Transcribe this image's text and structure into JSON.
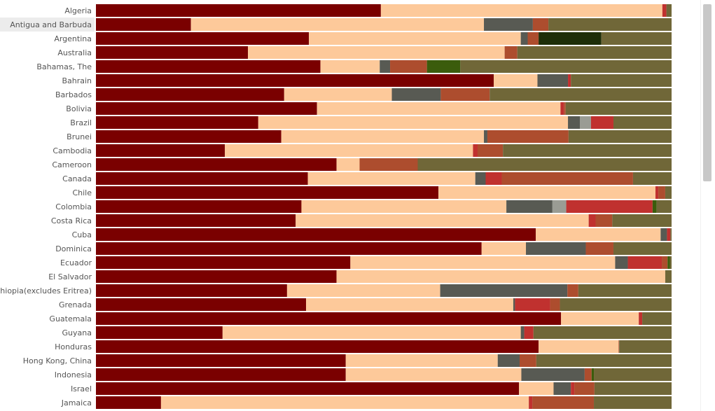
{
  "chart_data": {
    "type": "bar",
    "orientation": "horizontal",
    "stacked": "percent",
    "title": "",
    "xlabel": "",
    "ylabel": "",
    "xlim": [
      0,
      100
    ],
    "legend": "none",
    "grid": false,
    "highlighted_category": "Antigua and Barbuda",
    "categories": [
      "Algeria",
      "Antigua and Barbuda",
      "Argentina",
      "Australia",
      "Bahamas, The",
      "Bahrain",
      "Barbados",
      "Bolivia",
      "Brazil",
      "Brunei",
      "Cambodia",
      "Cameroon",
      "Canada",
      "Chile",
      "Colombia",
      "Costa Rica",
      "Cuba",
      "Dominica",
      "Ecuador",
      "El Salvador",
      "Ethiopia(excludes Eritrea)",
      "Grenada",
      "Guatemala",
      "Guyana",
      "Honduras",
      "Hong Kong, China",
      "Indonesia",
      "Israel",
      "Jamaica"
    ],
    "series": [
      {
        "color": "#7a0000",
        "values": [
          49.5,
          16.5,
          37.0,
          26.4,
          39.0,
          69.1,
          32.7,
          38.4,
          28.2,
          32.2,
          22.4,
          41.8,
          36.8,
          59.5,
          35.7,
          34.7,
          76.4,
          67.0,
          44.2,
          41.8,
          33.2,
          36.5,
          80.8,
          22.0,
          76.9,
          43.4,
          43.4,
          73.5,
          11.3
        ]
      },
      {
        "color": "#fdc99a",
        "values": [
          48.9,
          50.9,
          36.8,
          44.6,
          10.3,
          7.6,
          18.7,
          42.3,
          53.8,
          35.2,
          43.1,
          4.0,
          29.1,
          37.7,
          35.6,
          50.9,
          21.7,
          7.7,
          46.0,
          57.1,
          26.6,
          36.0,
          13.5,
          51.8,
          13.9,
          26.4,
          30.5,
          6.0,
          63.9
        ]
      },
      {
        "color": "#585a53",
        "values": [
          0,
          8.5,
          1.2,
          0,
          1.8,
          5.3,
          8.5,
          0,
          2.1,
          0.6,
          0,
          0,
          1.8,
          0,
          8.0,
          0,
          1.1,
          10.4,
          2.2,
          0,
          22.1,
          0.3,
          0,
          0.6,
          0,
          3.8,
          11.0,
          3.0,
          0
        ]
      },
      {
        "color": "#9a9c94",
        "values": [
          0,
          0,
          0,
          0,
          0,
          0,
          0,
          0,
          1.9,
          0,
          0,
          0,
          0,
          0,
          2.4,
          0,
          0,
          0,
          0,
          0,
          0,
          0,
          0,
          0,
          0,
          0,
          0,
          0,
          0
        ]
      },
      {
        "color": "#c0312f",
        "values": [
          0.7,
          0,
          0,
          0,
          0,
          0.5,
          0,
          0.6,
          3.9,
          0,
          0.8,
          0,
          2.8,
          0.5,
          15.0,
          1.2,
          0.6,
          0,
          5.9,
          0,
          0,
          6.1,
          0.6,
          1.6,
          0,
          0,
          0,
          0.6,
          0.6
        ]
      },
      {
        "color": "#ad4d2e",
        "values": [
          0,
          2.7,
          1.9,
          2.2,
          6.4,
          0,
          8.5,
          0.3,
          0,
          14.1,
          4.4,
          10.1,
          22.8,
          1.2,
          0,
          2.9,
          0,
          4.8,
          1.0,
          0,
          1.9,
          1.7,
          0,
          0,
          0.1,
          2.9,
          1.2,
          3.5,
          10.7
        ]
      },
      {
        "color": "#3b5c0c",
        "values": [
          0,
          0,
          0,
          0,
          5.8,
          0,
          0,
          0,
          0,
          0,
          0,
          0,
          0,
          0,
          0.7,
          0,
          0,
          0,
          0.4,
          0,
          0,
          0,
          0,
          0,
          0,
          0,
          0.4,
          0,
          0
        ]
      },
      {
        "color": "#1e2e08",
        "values": [
          0,
          0,
          10.9,
          0,
          0,
          0,
          0,
          0,
          0,
          0,
          0,
          0,
          0,
          0,
          0,
          0,
          0,
          0,
          0,
          0,
          0,
          0,
          0,
          0,
          0,
          0,
          0,
          0,
          0
        ]
      },
      {
        "color": "#706738",
        "values": [
          0.9,
          21.4,
          12.2,
          26.8,
          36.7,
          17.5,
          31.6,
          18.4,
          10.1,
          17.9,
          29.3,
          44.1,
          6.7,
          1.1,
          2.6,
          10.3,
          0.2,
          10.1,
          0.3,
          1.1,
          16.2,
          19.4,
          5.1,
          24.0,
          9.1,
          23.5,
          13.5,
          13.4,
          13.5
        ]
      }
    ]
  }
}
